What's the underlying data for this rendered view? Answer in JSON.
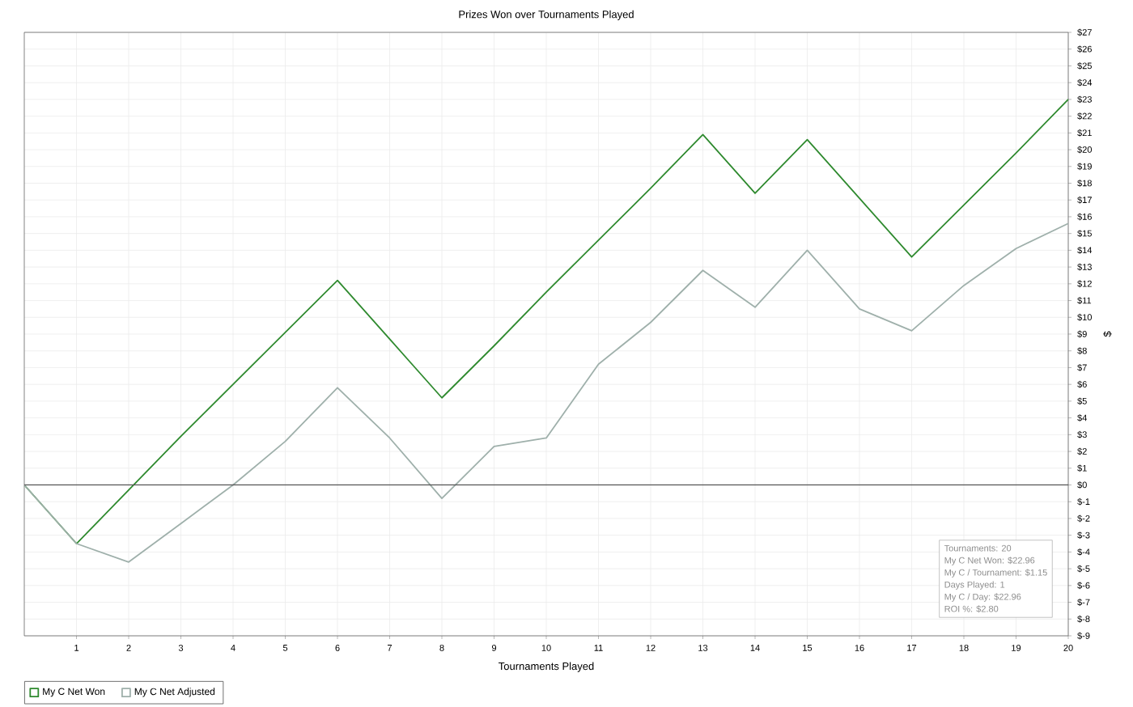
{
  "chart_data": {
    "type": "line",
    "title": "Prizes Won over Tournaments Played",
    "xlabel": "Tournaments Played",
    "ylabel": "$",
    "x": [
      0,
      1,
      2,
      3,
      4,
      5,
      6,
      7,
      8,
      9,
      10,
      11,
      12,
      13,
      14,
      15,
      16,
      17,
      18,
      19,
      20
    ],
    "series": [
      {
        "name": "My C Net Won",
        "color": "#2f8a2f",
        "values": [
          0,
          -3.5,
          -0.3,
          2.9,
          6.0,
          9.1,
          12.2,
          8.7,
          5.2,
          8.3,
          11.5,
          14.6,
          17.7,
          20.9,
          17.4,
          20.6,
          17.1,
          13.6,
          16.7,
          19.8,
          23.0
        ]
      },
      {
        "name": "My C Net Adjusted",
        "color": "#9fb0ab",
        "values": [
          0,
          -3.5,
          -4.6,
          -2.3,
          0,
          2.6,
          5.8,
          2.8,
          -0.8,
          2.3,
          2.8,
          7.2,
          9.7,
          12.8,
          10.6,
          14.0,
          10.5,
          9.2,
          11.9,
          14.1,
          15.6
        ]
      }
    ],
    "xlim": [
      0,
      20
    ],
    "xticks": [
      1,
      2,
      3,
      4,
      5,
      6,
      7,
      8,
      9,
      10,
      11,
      12,
      13,
      14,
      15,
      16,
      17,
      18,
      19,
      20
    ],
    "ylim": [
      -9,
      27
    ],
    "yticks": [
      {
        "value": 27,
        "label": "$27"
      },
      {
        "value": 26,
        "label": "$26"
      },
      {
        "value": 25,
        "label": "$25"
      },
      {
        "value": 24,
        "label": "$24"
      },
      {
        "value": 23,
        "label": "$23"
      },
      {
        "value": 22,
        "label": "$22"
      },
      {
        "value": 21,
        "label": "$21"
      },
      {
        "value": 20,
        "label": "$20"
      },
      {
        "value": 19,
        "label": "$19"
      },
      {
        "value": 18,
        "label": "$18"
      },
      {
        "value": 17,
        "label": "$17"
      },
      {
        "value": 16,
        "label": "$16"
      },
      {
        "value": 15,
        "label": "$15"
      },
      {
        "value": 14,
        "label": "$14"
      },
      {
        "value": 13,
        "label": "$13"
      },
      {
        "value": 12,
        "label": "$12"
      },
      {
        "value": 11,
        "label": "$11"
      },
      {
        "value": 10,
        "label": "$10"
      },
      {
        "value": 9,
        "label": "$9"
      },
      {
        "value": 8,
        "label": "$8"
      },
      {
        "value": 7,
        "label": "$7"
      },
      {
        "value": 6,
        "label": "$6"
      },
      {
        "value": 5,
        "label": "$5"
      },
      {
        "value": 4,
        "label": "$4"
      },
      {
        "value": 3,
        "label": "$3"
      },
      {
        "value": 2,
        "label": "$2"
      },
      {
        "value": 1,
        "label": "$1"
      },
      {
        "value": 0,
        "label": "$0"
      },
      {
        "value": -1,
        "label": "$-1"
      },
      {
        "value": -2,
        "label": "$-2"
      },
      {
        "value": -3,
        "label": "$-3"
      },
      {
        "value": -4,
        "label": "$-4"
      },
      {
        "value": -5,
        "label": "$-5"
      },
      {
        "value": -6,
        "label": "$-6"
      },
      {
        "value": -7,
        "label": "$-7"
      },
      {
        "value": -8,
        "label": "$-8"
      },
      {
        "value": -9,
        "label": "$-9"
      }
    ],
    "ref_lines": [
      {
        "axis": "y",
        "value": 0,
        "color": "#555555"
      }
    ],
    "annotations": [
      "Tournaments: 20",
      "My C Net Won: $22.96",
      "My C / Tournament: $1.15",
      "Days Played: 1",
      "My C / Day: $22.96",
      "ROI %: $2.80"
    ],
    "grid": true,
    "legend": "bottom left",
    "marker": "none"
  }
}
